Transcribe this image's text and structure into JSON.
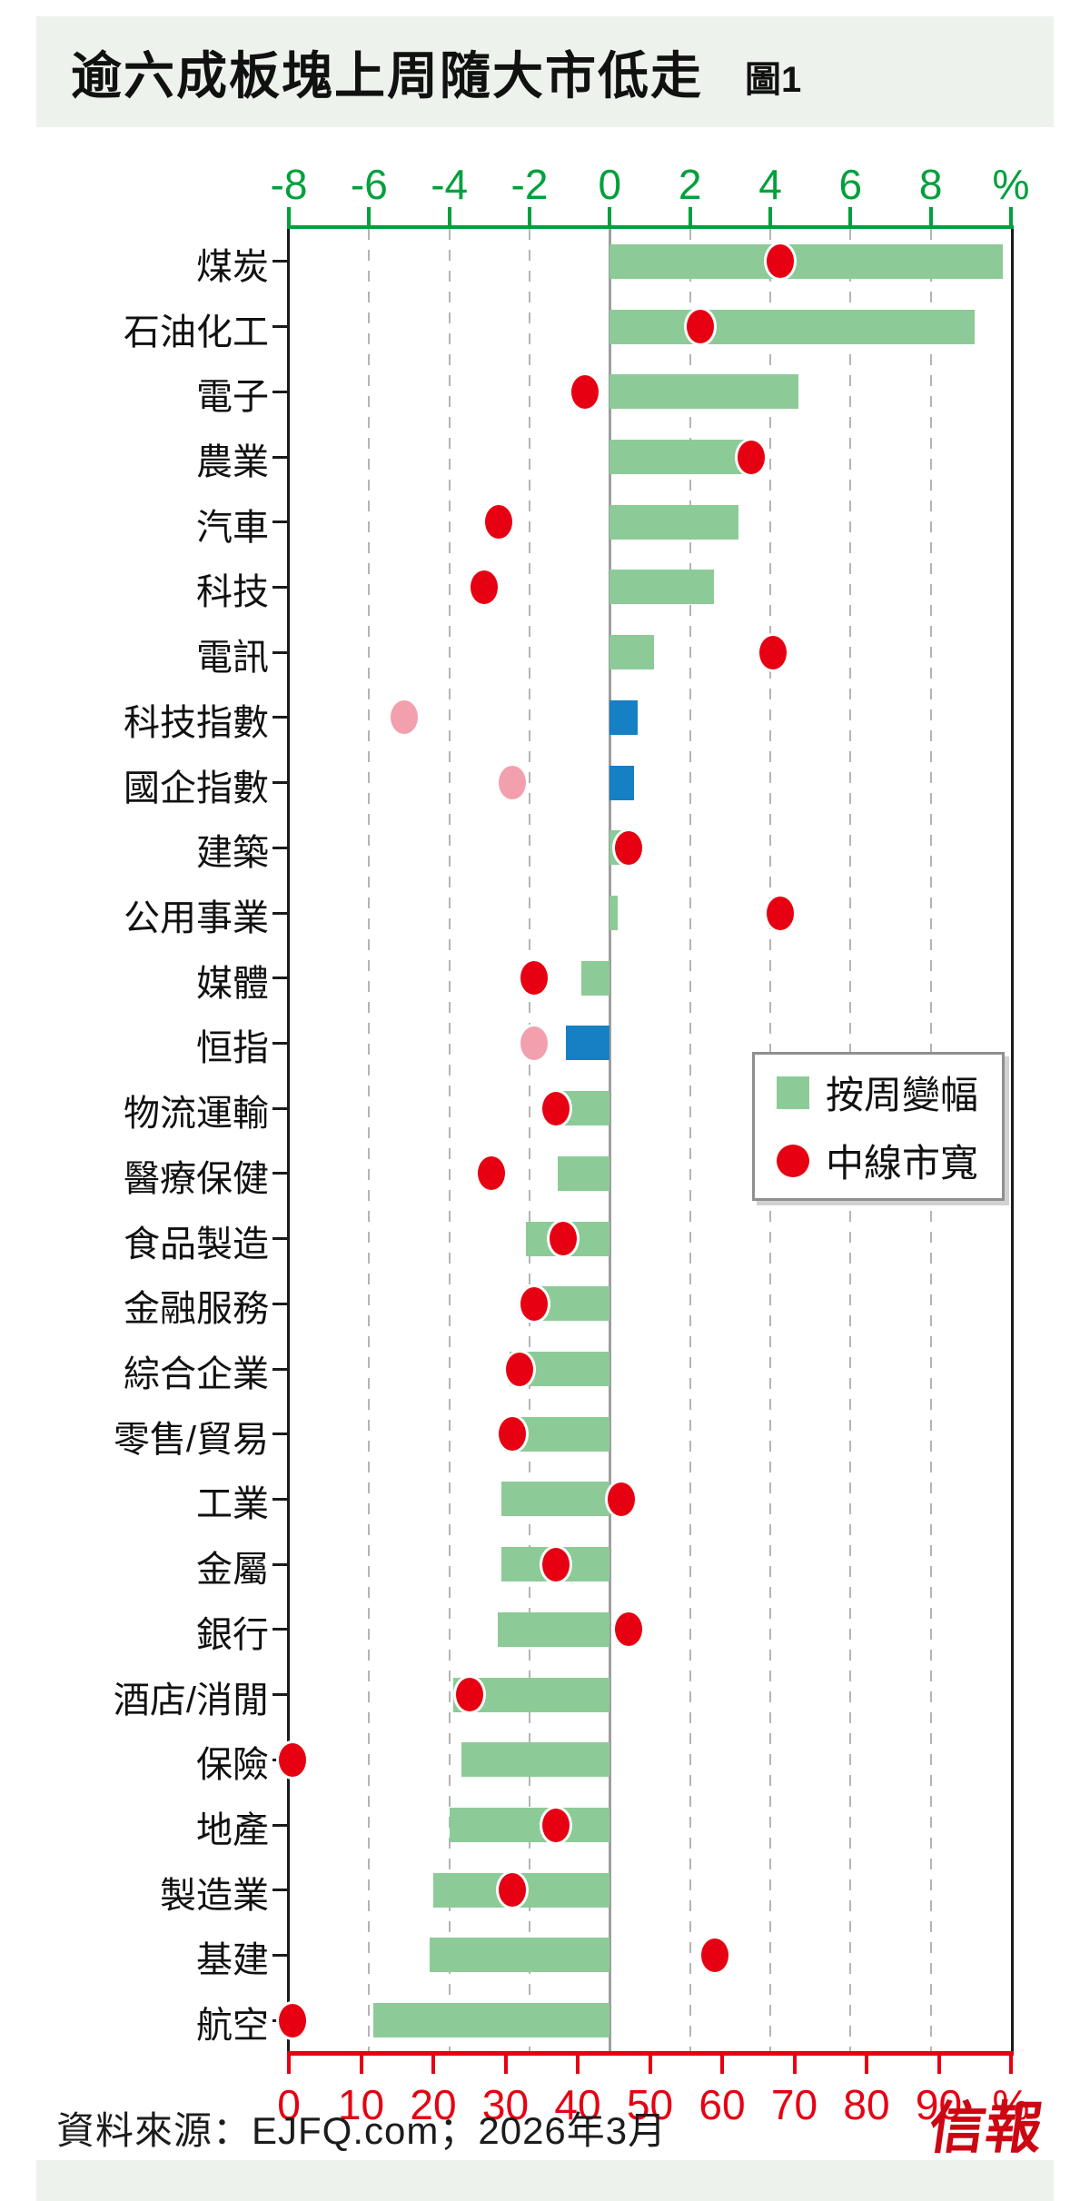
{
  "title": {
    "text": "逾六成板塊上周隨大市低走",
    "figure_label": "圖1"
  },
  "legend": {
    "bar_label": "按周變幅",
    "dot_label": "中線市寬"
  },
  "source": {
    "text": "資料來源：EJFQ.com；2026年3月",
    "logo": "信報"
  },
  "colors": {
    "bar_green": "#8ccb97",
    "bar_blue": "#1580c4",
    "dot_red": "#e60012",
    "dot_pink": "#f29fae",
    "axis_top_green": "#00a03c",
    "axis_bottom_red": "#e60012",
    "gridline": "#b4b4b4",
    "zero_line": "#9e9e9e",
    "plot_border": "#1a1a1a",
    "band_bg": "#edf2ec"
  },
  "chart_data": {
    "type": "bar",
    "orientation": "horizontal",
    "title": "逾六成板塊上周隨大市低走",
    "legend_position": "middle-right",
    "grid": "dashed vertical at every 2% of top axis",
    "top_axis": {
      "description": "weekly change % (green bars / blue index bars)",
      "tick_labels": [
        "-8",
        "-6",
        "-4",
        "-2",
        "0",
        "2",
        "4",
        "6",
        "8",
        "%"
      ],
      "tick_values": [
        -8,
        -6,
        -4,
        -2,
        0,
        2,
        4,
        6,
        8,
        10
      ],
      "range": [
        -8,
        10
      ]
    },
    "bottom_axis": {
      "description": "medium-term market breadth % (red dots)",
      "tick_labels": [
        "0",
        "10",
        "20",
        "30",
        "40",
        "50",
        "60",
        "70",
        "80",
        "90",
        "%"
      ],
      "tick_values": [
        0,
        10,
        20,
        30,
        40,
        50,
        60,
        70,
        80,
        90,
        100
      ],
      "range": [
        0,
        100
      ]
    },
    "series": [
      {
        "name": "按周變幅",
        "axis": "top",
        "mark": "bar"
      },
      {
        "name": "中線市寬",
        "axis": "bottom",
        "mark": "dot"
      }
    ],
    "rows": [
      {
        "label": "煤炭",
        "change": 9.8,
        "breadth": 68,
        "index": false
      },
      {
        "label": "石油化工",
        "change": 9.1,
        "breadth": 57,
        "index": false
      },
      {
        "label": "電子",
        "change": 4.7,
        "breadth": 41,
        "index": false
      },
      {
        "label": "農業",
        "change": 3.5,
        "breadth": 64,
        "index": false
      },
      {
        "label": "汽車",
        "change": 3.2,
        "breadth": 29,
        "index": false
      },
      {
        "label": "科技",
        "change": 2.6,
        "breadth": 27,
        "index": false
      },
      {
        "label": "電訊",
        "change": 1.1,
        "breadth": 67,
        "index": false
      },
      {
        "label": "科技指數",
        "change": 0.7,
        "breadth": 16,
        "index": true
      },
      {
        "label": "國企指數",
        "change": 0.6,
        "breadth": 31,
        "index": true
      },
      {
        "label": "建築",
        "change": 0.5,
        "breadth": 47,
        "index": false
      },
      {
        "label": "公用事業",
        "change": 0.2,
        "breadth": 68,
        "index": false
      },
      {
        "label": "媒體",
        "change": -0.7,
        "breadth": 34,
        "index": false
      },
      {
        "label": "恒指",
        "change": -1.1,
        "breadth": 34,
        "index": true
      },
      {
        "label": "物流運輸",
        "change": -1.2,
        "breadth": 37,
        "index": false
      },
      {
        "label": "醫療保健",
        "change": -1.3,
        "breadth": 28,
        "index": false
      },
      {
        "label": "食品製造",
        "change": -2.1,
        "breadth": 38,
        "index": false
      },
      {
        "label": "金融服務",
        "change": -2.1,
        "breadth": 34,
        "index": false
      },
      {
        "label": "綜合企業",
        "change": -2.5,
        "breadth": 32,
        "index": false
      },
      {
        "label": "零售/貿易",
        "change": -2.6,
        "breadth": 31,
        "index": false
      },
      {
        "label": "工業",
        "change": -2.7,
        "breadth": 46,
        "index": false
      },
      {
        "label": "金屬",
        "change": -2.7,
        "breadth": 37,
        "index": false
      },
      {
        "label": "銀行",
        "change": -2.8,
        "breadth": 47,
        "index": false
      },
      {
        "label": "酒店/消閒",
        "change": -3.9,
        "breadth": 25,
        "index": false
      },
      {
        "label": "保險",
        "change": -3.7,
        "breadth": 0.5,
        "index": false
      },
      {
        "label": "地產",
        "change": -4.0,
        "breadth": 37,
        "index": false
      },
      {
        "label": "製造業",
        "change": -4.4,
        "breadth": 31,
        "index": false
      },
      {
        "label": "基建",
        "change": -4.5,
        "breadth": 59,
        "index": false
      },
      {
        "label": "航空",
        "change": -5.9,
        "breadth": 0.5,
        "index": false
      }
    ]
  }
}
